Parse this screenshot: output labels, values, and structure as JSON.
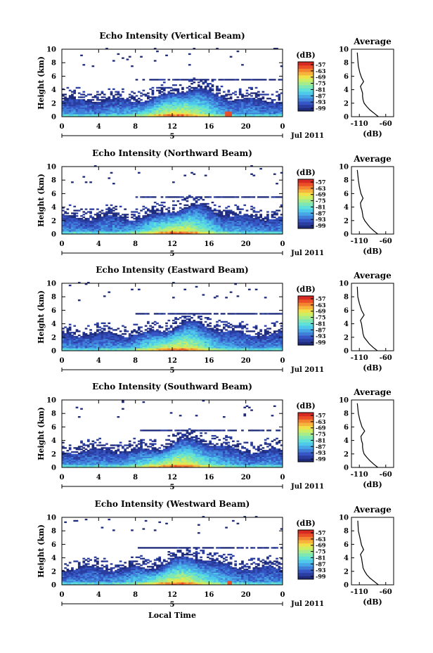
{
  "figure": {
    "xlabel": "Local Time",
    "date_label": "Jul 2011",
    "day_label": "5",
    "cb_unit": "(dB)",
    "avg_title": "Average",
    "avg_xlabel": "(dB)",
    "ylabel": "Height (km)"
  },
  "chart_data": [
    {
      "type": "heatmap",
      "title": "Echo Intensity (Vertical Beam)",
      "ylabel": "Height (km)",
      "x_ticks": [
        "0",
        "4",
        "8",
        "12",
        "16",
        "20",
        "0"
      ],
      "y_ticks": [
        "0",
        "2",
        "4",
        "6",
        "8",
        "10"
      ],
      "xlim": [
        0,
        24
      ],
      "ylim": [
        0,
        10
      ],
      "colorbar": {
        "label": "(dB)",
        "ticks": [
          "-57",
          "-63",
          "-69",
          "-75",
          "-81",
          "-87",
          "-93",
          "-99"
        ]
      },
      "average": {
        "title": "Average",
        "xlabel": "(dB)",
        "x_ticks": [
          "-110",
          "-60"
        ],
        "y_ticks": [
          "0",
          "2",
          "4",
          "6",
          "8",
          "10"
        ],
        "profile": [
          [
            -74,
            0
          ],
          [
            -82,
            0.5
          ],
          [
            -90,
            1
          ],
          [
            -96,
            1.5
          ],
          [
            -101,
            2
          ],
          [
            -103,
            2.5
          ],
          [
            -104,
            3
          ],
          [
            -104,
            3.5
          ],
          [
            -106,
            4
          ],
          [
            -108,
            4.5
          ],
          [
            -102,
            5.2
          ],
          [
            -106,
            5.8
          ],
          [
            -109,
            6.5
          ],
          [
            -112,
            7.5
          ],
          [
            -113,
            8.5
          ],
          [
            -114,
            9.5
          ]
        ]
      }
    },
    {
      "type": "heatmap",
      "title": "Echo Intensity (Northward Beam)",
      "ylabel": "Height (km)",
      "x_ticks": [
        "0",
        "4",
        "8",
        "12",
        "16",
        "20",
        "0"
      ],
      "y_ticks": [
        "0",
        "2",
        "4",
        "6",
        "8",
        "10"
      ],
      "xlim": [
        0,
        24
      ],
      "ylim": [
        0,
        10
      ],
      "colorbar": {
        "label": "(dB)",
        "ticks": [
          "-57",
          "-63",
          "-69",
          "-75",
          "-81",
          "-87",
          "-93",
          "-99"
        ]
      },
      "average": {
        "title": "Average",
        "xlabel": "(dB)",
        "x_ticks": [
          "-110",
          "-60"
        ],
        "y_ticks": [
          "0",
          "2",
          "4",
          "6",
          "8",
          "10"
        ],
        "profile": [
          [
            -75,
            0
          ],
          [
            -83,
            0.5
          ],
          [
            -90,
            1
          ],
          [
            -95,
            1.5
          ],
          [
            -100,
            2
          ],
          [
            -103,
            2.5
          ],
          [
            -104,
            3
          ],
          [
            -105,
            3.5
          ],
          [
            -107,
            4
          ],
          [
            -108,
            4.6
          ],
          [
            -103,
            5.3
          ],
          [
            -107,
            6
          ],
          [
            -110,
            7
          ],
          [
            -112,
            8
          ],
          [
            -114,
            9.5
          ]
        ]
      }
    },
    {
      "type": "heatmap",
      "title": "Echo Intensity (Eastward Beam)",
      "ylabel": "Height (km)",
      "x_ticks": [
        "0",
        "4",
        "8",
        "12",
        "16",
        "20",
        "0"
      ],
      "y_ticks": [
        "0",
        "2",
        "4",
        "6",
        "8",
        "10"
      ],
      "xlim": [
        0,
        24
      ],
      "ylim": [
        0,
        10
      ],
      "colorbar": {
        "label": "(dB)",
        "ticks": [
          "-57",
          "-63",
          "-69",
          "-75",
          "-81",
          "-87",
          "-93",
          "-99"
        ]
      },
      "average": {
        "title": "Average",
        "xlabel": "(dB)",
        "x_ticks": [
          "-110",
          "-60"
        ],
        "y_ticks": [
          "0",
          "2",
          "4",
          "6",
          "8",
          "10"
        ],
        "profile": [
          [
            -76,
            0
          ],
          [
            -84,
            0.5
          ],
          [
            -91,
            1
          ],
          [
            -96,
            1.5
          ],
          [
            -101,
            2
          ],
          [
            -103,
            2.5
          ],
          [
            -104,
            3
          ],
          [
            -105,
            3.5
          ],
          [
            -106,
            4
          ],
          [
            -108,
            4.5
          ],
          [
            -101,
            5.3
          ],
          [
            -106,
            6
          ],
          [
            -110,
            7
          ],
          [
            -113,
            8
          ],
          [
            -114,
            9.5
          ]
        ]
      }
    },
    {
      "type": "heatmap",
      "title": "Echo Intensity (Southward Beam)",
      "ylabel": "Height (km)",
      "x_ticks": [
        "0",
        "4",
        "8",
        "12",
        "16",
        "20",
        "0"
      ],
      "y_ticks": [
        "0",
        "2",
        "4",
        "6",
        "8",
        "10"
      ],
      "xlim": [
        0,
        24
      ],
      "ylim": [
        0,
        10
      ],
      "colorbar": {
        "label": "(dB)",
        "ticks": [
          "-57",
          "-63",
          "-69",
          "-75",
          "-81",
          "-87",
          "-93",
          "-99"
        ]
      },
      "average": {
        "title": "Average",
        "xlabel": "(dB)",
        "x_ticks": [
          "-110",
          "-60"
        ],
        "y_ticks": [
          "0",
          "2",
          "4",
          "6",
          "8",
          "10"
        ],
        "profile": [
          [
            -75,
            0
          ],
          [
            -83,
            0.5
          ],
          [
            -90,
            1
          ],
          [
            -96,
            1.5
          ],
          [
            -101,
            2
          ],
          [
            -103,
            2.5
          ],
          [
            -104,
            3
          ],
          [
            -104,
            3.5
          ],
          [
            -106,
            4
          ],
          [
            -107,
            4.6
          ],
          [
            -100,
            5.4
          ],
          [
            -105,
            6
          ],
          [
            -109,
            7
          ],
          [
            -112,
            8
          ],
          [
            -114,
            9.5
          ]
        ]
      }
    },
    {
      "type": "heatmap",
      "title": "Echo Intensity (Westward Beam)",
      "ylabel": "Height (km)",
      "x_ticks": [
        "0",
        "4",
        "8",
        "12",
        "16",
        "20",
        "0"
      ],
      "y_ticks": [
        "0",
        "2",
        "4",
        "6",
        "8",
        "10"
      ],
      "xlim": [
        0,
        24
      ],
      "ylim": [
        0,
        10
      ],
      "colorbar": {
        "label": "(dB)",
        "ticks": [
          "-57",
          "-63",
          "-69",
          "-75",
          "-81",
          "-87",
          "-93",
          "-99"
        ]
      },
      "average": {
        "title": "Average",
        "xlabel": "(dB)",
        "x_ticks": [
          "-110",
          "-60"
        ],
        "y_ticks": [
          "0",
          "2",
          "4",
          "6",
          "8",
          "10"
        ],
        "profile": [
          [
            -74,
            0
          ],
          [
            -82,
            0.5
          ],
          [
            -90,
            1
          ],
          [
            -96,
            1.5
          ],
          [
            -100,
            2
          ],
          [
            -103,
            2.5
          ],
          [
            -104,
            3
          ],
          [
            -105,
            3.5
          ],
          [
            -106,
            4
          ],
          [
            -108,
            4.5
          ],
          [
            -102,
            5.2
          ],
          [
            -106,
            5.9
          ],
          [
            -109,
            7
          ],
          [
            -112,
            8
          ],
          [
            -113,
            9.5
          ]
        ]
      }
    }
  ],
  "palette": [
    "#1e2a7a",
    "#2b3ea0",
    "#3556c4",
    "#3f7fd8",
    "#46a6e6",
    "#4fc9ea",
    "#5fe0d8",
    "#7ee7b4",
    "#a6ec8a",
    "#cdee62",
    "#f0e04a",
    "#f7b43c",
    "#f48530",
    "#ea4f28",
    "#d62a22"
  ]
}
